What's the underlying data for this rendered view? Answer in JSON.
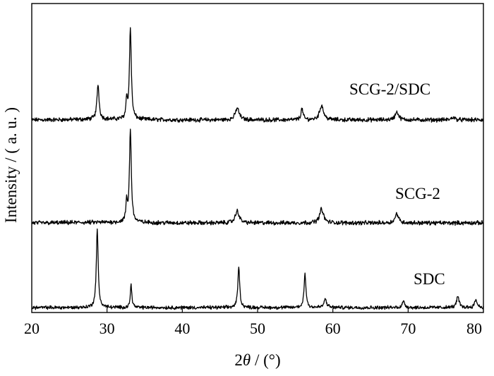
{
  "chart_data": {
    "type": "line",
    "title": "",
    "xlabel_prefix": "2",
    "xlabel_symbol": "θ",
    "xlabel_suffix": " / (°)",
    "ylabel": "Intensity / ( a. u. )",
    "xlim": [
      20,
      80
    ],
    "xticks": [
      20,
      30,
      40,
      50,
      60,
      70,
      80
    ],
    "y_ticks_shown": false,
    "grid": false,
    "legend": "inline labels right of each pattern",
    "color": "#000000",
    "series": [
      {
        "name": "SCG-2/SDC",
        "baseline": 0.3,
        "peaks": [
          {
            "x": 28.8,
            "h": 0.38,
            "w": 0.25
          },
          {
            "x": 32.6,
            "h": 0.22,
            "w": 0.15
          },
          {
            "x": 33.1,
            "h": 1.0,
            "w": 0.22
          },
          {
            "x": 47.3,
            "h": 0.13,
            "w": 0.45
          },
          {
            "x": 55.9,
            "h": 0.12,
            "w": 0.25
          },
          {
            "x": 58.5,
            "h": 0.16,
            "w": 0.45
          },
          {
            "x": 68.5,
            "h": 0.09,
            "w": 0.4
          },
          {
            "x": 76.0,
            "h": 0.03,
            "w": 0.4
          }
        ]
      },
      {
        "name": "SCG-2",
        "baseline": 0.3,
        "peaks": [
          {
            "x": 32.6,
            "h": 0.22,
            "w": 0.15
          },
          {
            "x": 33.1,
            "h": 1.0,
            "w": 0.22
          },
          {
            "x": 47.3,
            "h": 0.13,
            "w": 0.45
          },
          {
            "x": 58.5,
            "h": 0.15,
            "w": 0.45
          },
          {
            "x": 68.5,
            "h": 0.1,
            "w": 0.4
          }
        ]
      },
      {
        "name": "SDC",
        "baseline": 0.0,
        "peaks": [
          {
            "x": 28.7,
            "h": 1.0,
            "w": 0.22
          },
          {
            "x": 33.2,
            "h": 0.3,
            "w": 0.18
          },
          {
            "x": 47.5,
            "h": 0.52,
            "w": 0.22
          },
          {
            "x": 56.3,
            "h": 0.44,
            "w": 0.22
          },
          {
            "x": 59.0,
            "h": 0.11,
            "w": 0.3
          },
          {
            "x": 69.4,
            "h": 0.08,
            "w": 0.3
          },
          {
            "x": 76.6,
            "h": 0.14,
            "w": 0.3
          },
          {
            "x": 79.0,
            "h": 0.1,
            "w": 0.3
          }
        ]
      }
    ]
  }
}
